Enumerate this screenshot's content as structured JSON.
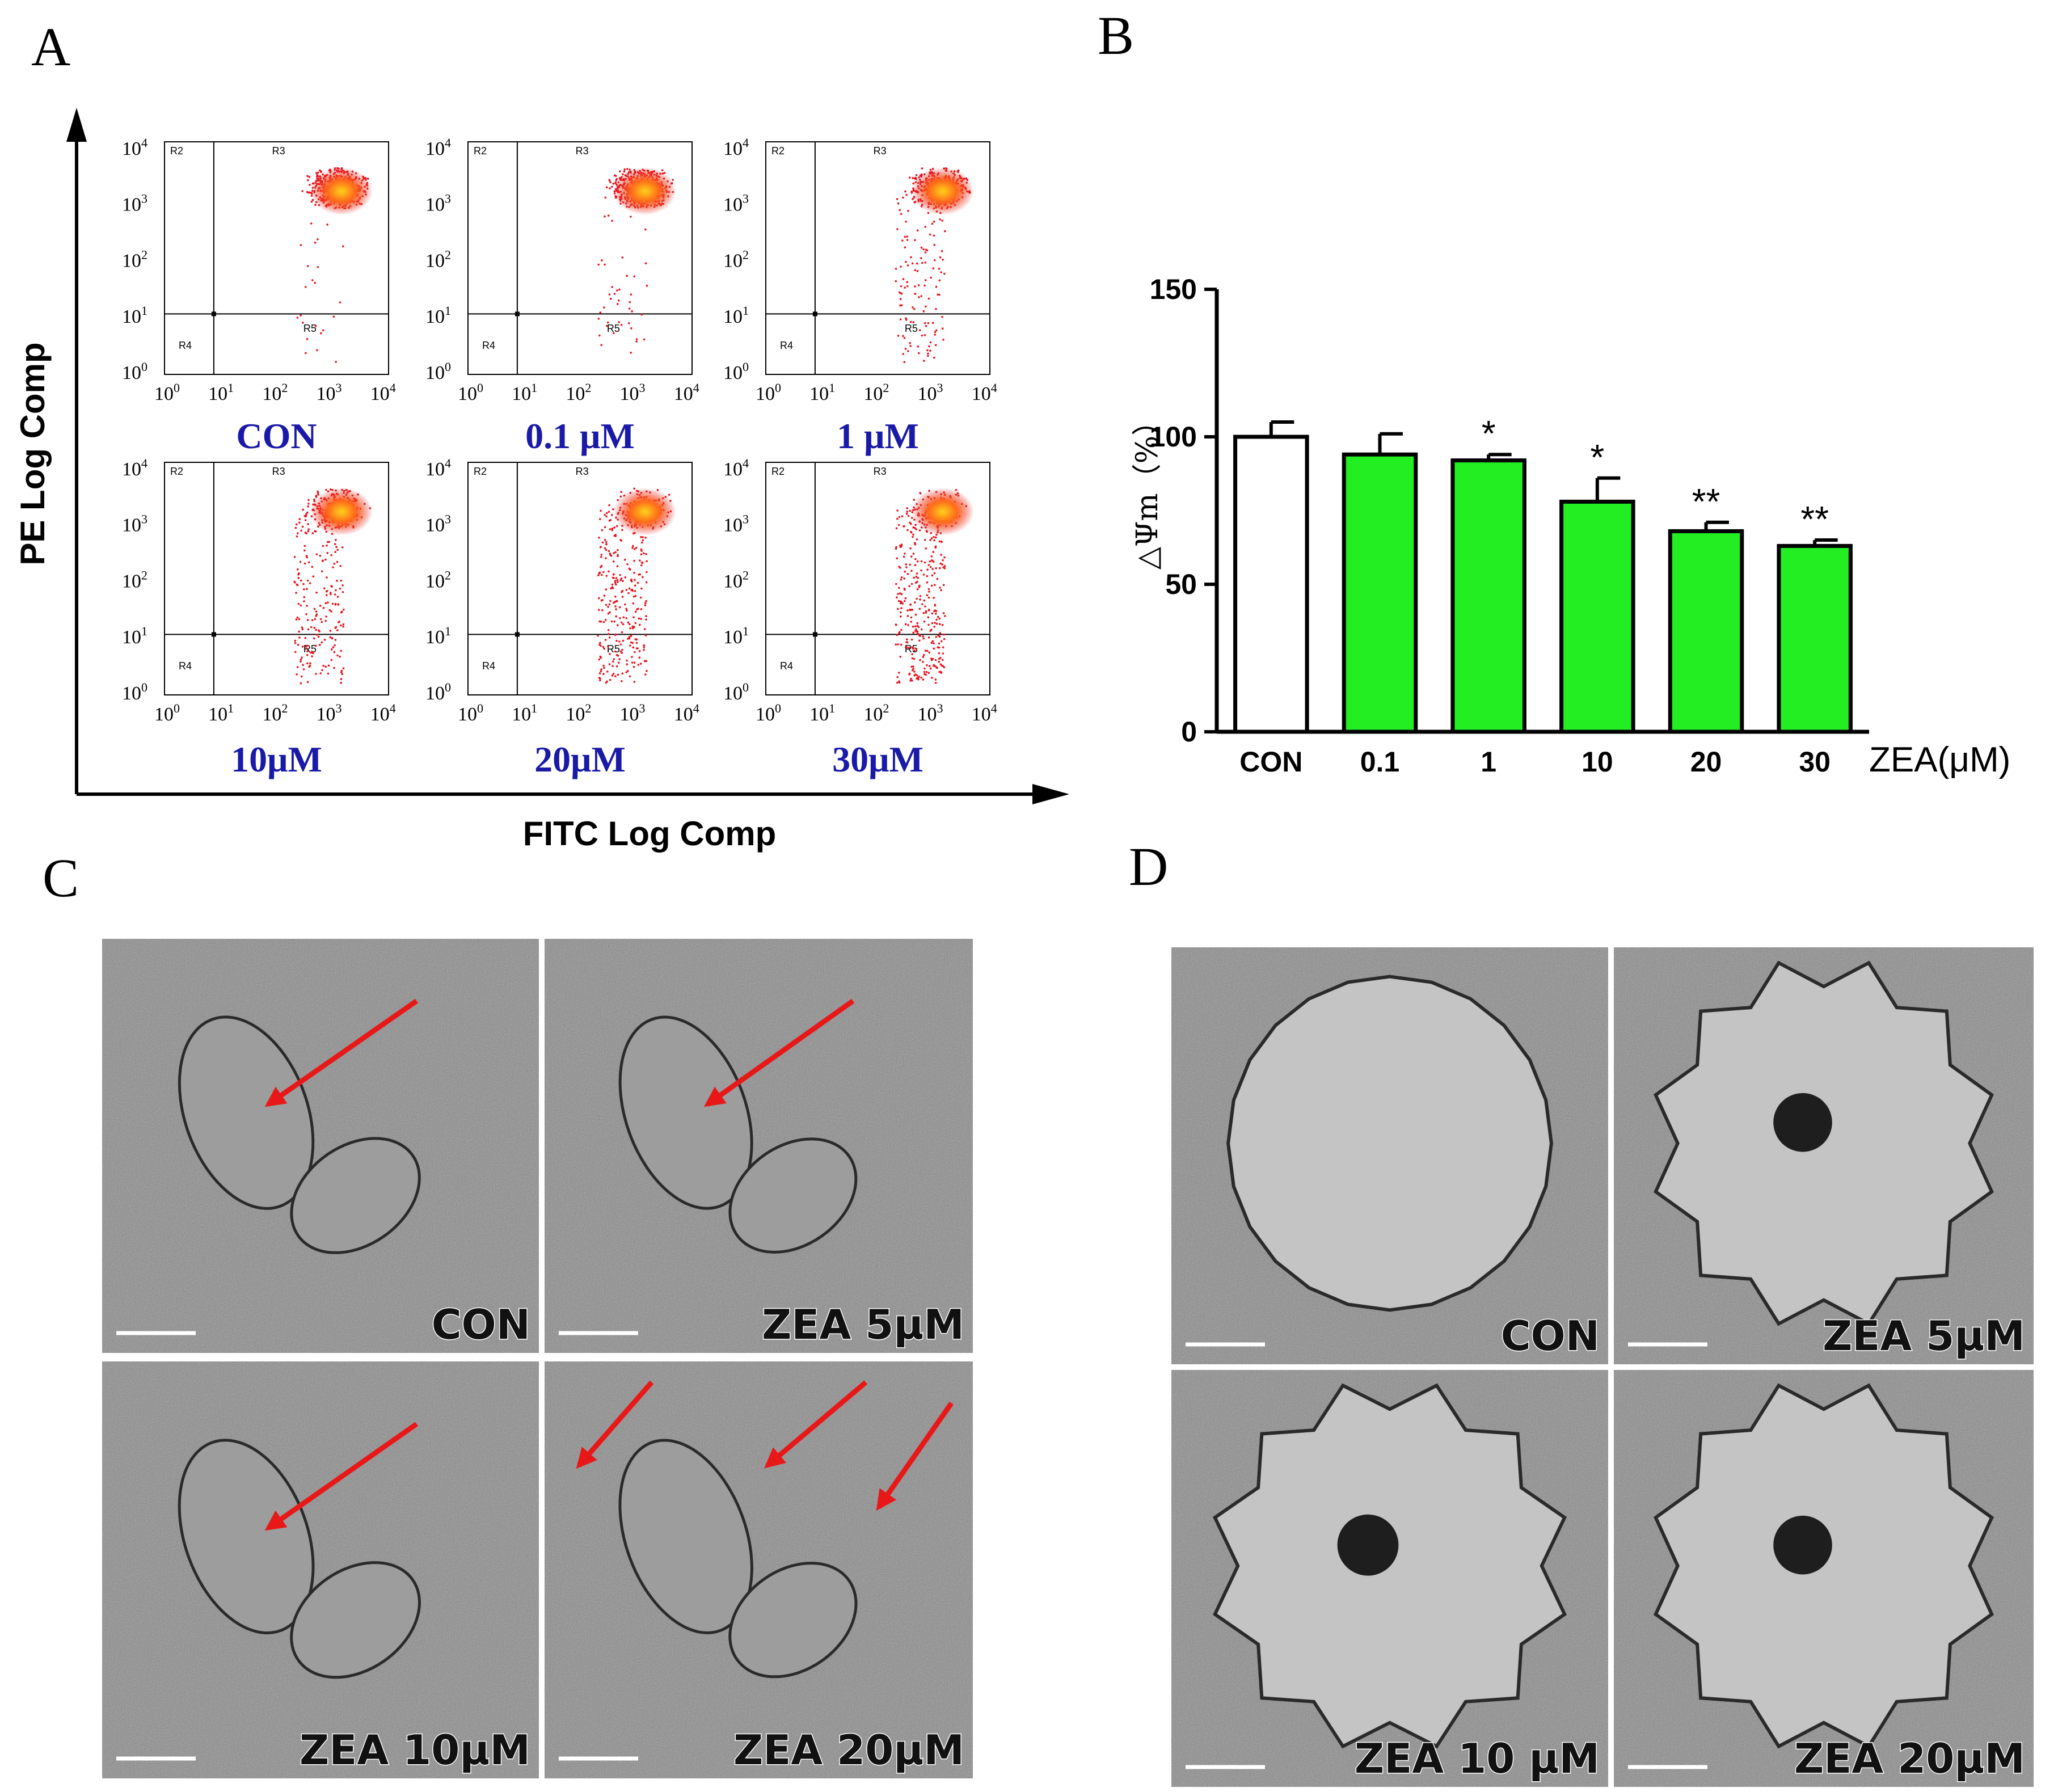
{
  "panels": {
    "a": "A",
    "b": "B",
    "c": "C",
    "d": "D"
  },
  "flow": {
    "x_axis_label": "FITC Log Comp",
    "y_axis_label": "PE Log Comp",
    "tick_base": "10",
    "tick_exponents": [
      "0",
      "1",
      "2",
      "3",
      "4"
    ],
    "region_labels": [
      "R2",
      "R3",
      "R4",
      "R5"
    ],
    "plots": [
      {
        "caption": "CON",
        "spread": 0.05
      },
      {
        "caption": "0.1 μM",
        "spread": 0.1
      },
      {
        "caption": "1 μM",
        "spread": 0.3
      },
      {
        "caption": "10μM",
        "spread": 0.55
      },
      {
        "caption": "20μM",
        "spread": 0.7
      },
      {
        "caption": "30μM",
        "spread": 0.8
      }
    ],
    "colors": {
      "dots": "#e8141e",
      "core": "#ffd21a",
      "caption": "#1a1aa8"
    }
  },
  "chart_data": {
    "type": "bar",
    "categories": [
      "CON",
      "0.1",
      "1",
      "10",
      "20",
      "30"
    ],
    "values": [
      100,
      94,
      92,
      78,
      68,
      63
    ],
    "errors": [
      5,
      7,
      2,
      8,
      3,
      2
    ],
    "significance": [
      "",
      "",
      "*",
      "*",
      "**",
      "**"
    ],
    "ylabel": "△Ψm（%）",
    "xlabel": "ZEA(μM)",
    "ylim": [
      0,
      150
    ],
    "yticks": [
      "0",
      "50",
      "100",
      "150"
    ],
    "colors": [
      "#ffffff",
      "#22ee22",
      "#22ee22",
      "#22ee22",
      "#22ee22",
      "#22ee22"
    ]
  },
  "panel_c": {
    "labels": [
      "CON",
      "ZEA 5μM",
      "ZEA 10μM",
      "ZEA 20μM"
    ],
    "arrow_color": "#e81818"
  },
  "panel_d": {
    "labels": [
      "CON",
      "ZEA 5μM",
      "ZEA 10 μM",
      "ZEA 20μM"
    ]
  }
}
